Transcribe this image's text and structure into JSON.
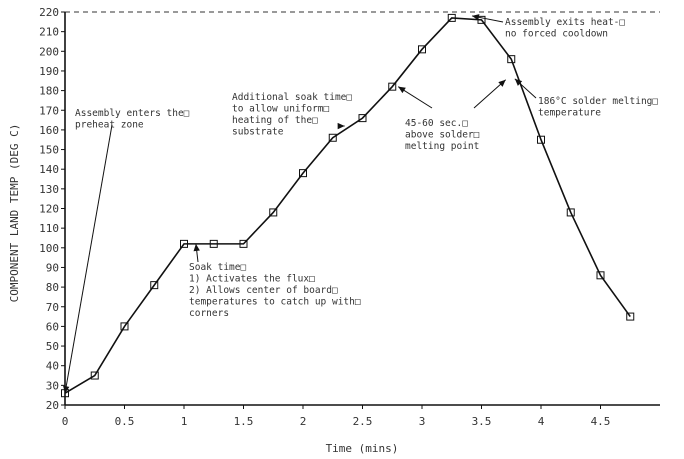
{
  "chart_data": {
    "type": "line",
    "title": "",
    "xlabel": "Time (mins)",
    "ylabel": "COMPONENT LAND TEMP (DEG C)",
    "xlim": [
      0,
      5
    ],
    "ylim": [
      20,
      220
    ],
    "x_ticks": [
      "0",
      "0.5",
      "1",
      "1.5",
      "2",
      "2.5",
      "3",
      "3.5",
      "4",
      "4.5"
    ],
    "y_ticks": [
      "20",
      "30",
      "40",
      "50",
      "60",
      "70",
      "80",
      "90",
      "100",
      "110",
      "120",
      "130",
      "140",
      "150",
      "160",
      "170",
      "180",
      "190",
      "200",
      "210",
      "220"
    ],
    "grid": false,
    "reference_line": {
      "y": 220,
      "style": "dashed"
    },
    "series": [
      {
        "x": [
          0,
          0.25,
          0.5,
          0.75,
          1.0,
          1.25,
          1.5,
          1.75,
          2.0,
          2.25,
          2.5,
          2.75,
          3.0,
          3.25,
          3.5,
          3.75,
          4.0,
          4.25,
          4.5,
          4.75
        ],
        "y": [
          26,
          35,
          60,
          81,
          102,
          102,
          102,
          118,
          138,
          156,
          166,
          182,
          201,
          217,
          216,
          196,
          155,
          118,
          86,
          65
        ]
      }
    ],
    "annotations": [
      {
        "lines": [
          "Assembly enters the□",
          "preheat zone"
        ],
        "target": [
          0,
          26
        ]
      },
      {
        "lines": [
          "Soak time□",
          "1) Activates the flux□",
          "2) Allows center of board□",
          "temperatures to catch up with□",
          "corners"
        ],
        "target": [
          1.1,
          102
        ]
      },
      {
        "lines": [
          "Additional soak time□",
          "to allow uniform□",
          "heating of the□",
          "substrate"
        ],
        "target": [
          2.35,
          162
        ]
      },
      {
        "lines": [
          "45-60 sec.□",
          "above solder□",
          "melting point"
        ],
        "target": [
          2.8,
          182
        ],
        "target2": [
          3.72,
          186
        ]
      },
      {
        "lines": [
          "Assembly exits heat-□",
          "no forced cooldown"
        ],
        "target": [
          3.42,
          218
        ]
      },
      {
        "lines": [
          "186°C solder melting□",
          "temperature"
        ],
        "target": [
          3.78,
          186
        ]
      }
    ]
  }
}
